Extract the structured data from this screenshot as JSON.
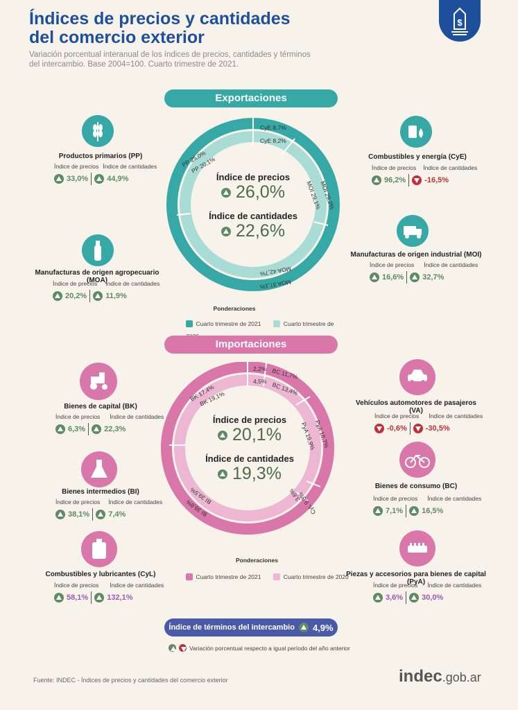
{
  "header": {
    "title_line1": "Índices de precios y cantidades",
    "title_line2": "del comercio exterior",
    "subtitle_line1": "Variación porcentual interanual de los índices de precios, cantidades y términos",
    "subtitle_line2": "del intercambio. Base 2004=100. Cuarto trimestre de 2021."
  },
  "common": {
    "precios_label": "Índice de precios",
    "cantidades_label": "Índice de cantidades",
    "ponderaciones": "Ponderaciones",
    "q4_2021": "Cuarto trimestre de 2021",
    "q4_2020": "Cuarto trimestre de 2020"
  },
  "exportaciones": {
    "title": "Exportaciones",
    "center": {
      "precios_label": "Índice de precios",
      "precios_value": "26,0%",
      "cantidades_label": "Índice de cantidades",
      "cantidades_value": "22,6%"
    },
    "ring_labels": {
      "outer_cye": "CyE 8,7%",
      "inner_cye": "CyE 8,2%",
      "outer_pp": "PP 25,0%",
      "inner_pp": "PP 20,1%",
      "outer_moi": "MOI 29,2%",
      "inner_moi": "MOI 29,1%",
      "outer_moa": "MOA 37,1%",
      "inner_moa": "MOA 42,7%"
    },
    "categories": [
      {
        "name": "Productos primarios (PP)",
        "precios": "33,0%",
        "cantidades": "44,9%",
        "precios_dir": "up",
        "cantidades_dir": "up"
      },
      {
        "name": "Manufacturas de origen agropecuario (MOA)",
        "precios": "20,2%",
        "cantidades": "11,9%",
        "precios_dir": "up",
        "cantidades_dir": "up"
      },
      {
        "name": "Combustibles y energía (CyE)",
        "precios": "96,2%",
        "cantidades": "-16,5%",
        "precios_dir": "up",
        "cantidades_dir": "down"
      },
      {
        "name": "Manufacturas de origen industrial (MOI)",
        "precios": "16,6%",
        "cantidades": "32,7%",
        "precios_dir": "up",
        "cantidades_dir": "up"
      }
    ]
  },
  "importaciones": {
    "title": "Importaciones",
    "center": {
      "precios_label": "Índice de precios",
      "precios_value": "20,1%",
      "cantidades_label": "Índice de cantidades",
      "cantidades_value": "19,3%"
    },
    "ring_labels": {
      "outer_va": "2,2%",
      "inner_va": "4,5%",
      "outer_bc": "BC 11,7%",
      "inner_bc": "BC 13,4%",
      "outer_bk": "BK 17,4%",
      "inner_bk": "BK 19,1%",
      "outer_pya": "PyA 18,7%",
      "inner_pya": "PyA 19,9%",
      "outer_cyl": "CyL 9,3%",
      "inner_cyl": "3,6%",
      "outer_bi": "BI 39,8%",
      "inner_bi": "BI 39,5%"
    },
    "categories": [
      {
        "name": "Bienes de capital (BK)",
        "precios": "6,3%",
        "cantidades": "22,3%",
        "precios_dir": "up",
        "cantidades_dir": "up"
      },
      {
        "name": "Bienes intermedios (BI)",
        "precios": "38,1%",
        "cantidades": "7,4%",
        "precios_dir": "up",
        "cantidades_dir": "up"
      },
      {
        "name": "Combustibles y lubricantes (CyL)",
        "precios": "58,1%",
        "cantidades": "132,1%",
        "precios_dir": "up",
        "cantidades_dir": "up"
      },
      {
        "name": "Vehículos automotores de pasajeros (VA)",
        "precios": "-0,6%",
        "cantidades": "-30,5%",
        "precios_dir": "down",
        "cantidades_dir": "down"
      },
      {
        "name": "Bienes de consumo (BC)",
        "precios": "7,1%",
        "cantidades": "16,5%",
        "precios_dir": "up",
        "cantidades_dir": "up"
      },
      {
        "name": "Piezas y accesorios para bienes de capital (PyA)",
        "precios": "3,6%",
        "cantidades": "30,0%",
        "precios_dir": "up",
        "cantidades_dir": "up"
      }
    ]
  },
  "terminos": {
    "label": "Índice de términos del intercambio",
    "value": "4,9%"
  },
  "legend_note": "Variación porcentual respecto a igual período del año anterior",
  "footer": {
    "source": "Fuente: INDEC - Índices de precios y cantidades del comercio exterior",
    "logo_main": "indec",
    "logo_suffix": ".gob.ar"
  },
  "colors": {
    "teal": "#36a8a6",
    "teal_light": "#a9dcd4",
    "pink": "#d976aa",
    "pink_light": "#edb6d2",
    "navy": "#1d4f9c",
    "purple": "#4b5aa8",
    "green": "#5d8b62",
    "red": "#c0303a"
  }
}
